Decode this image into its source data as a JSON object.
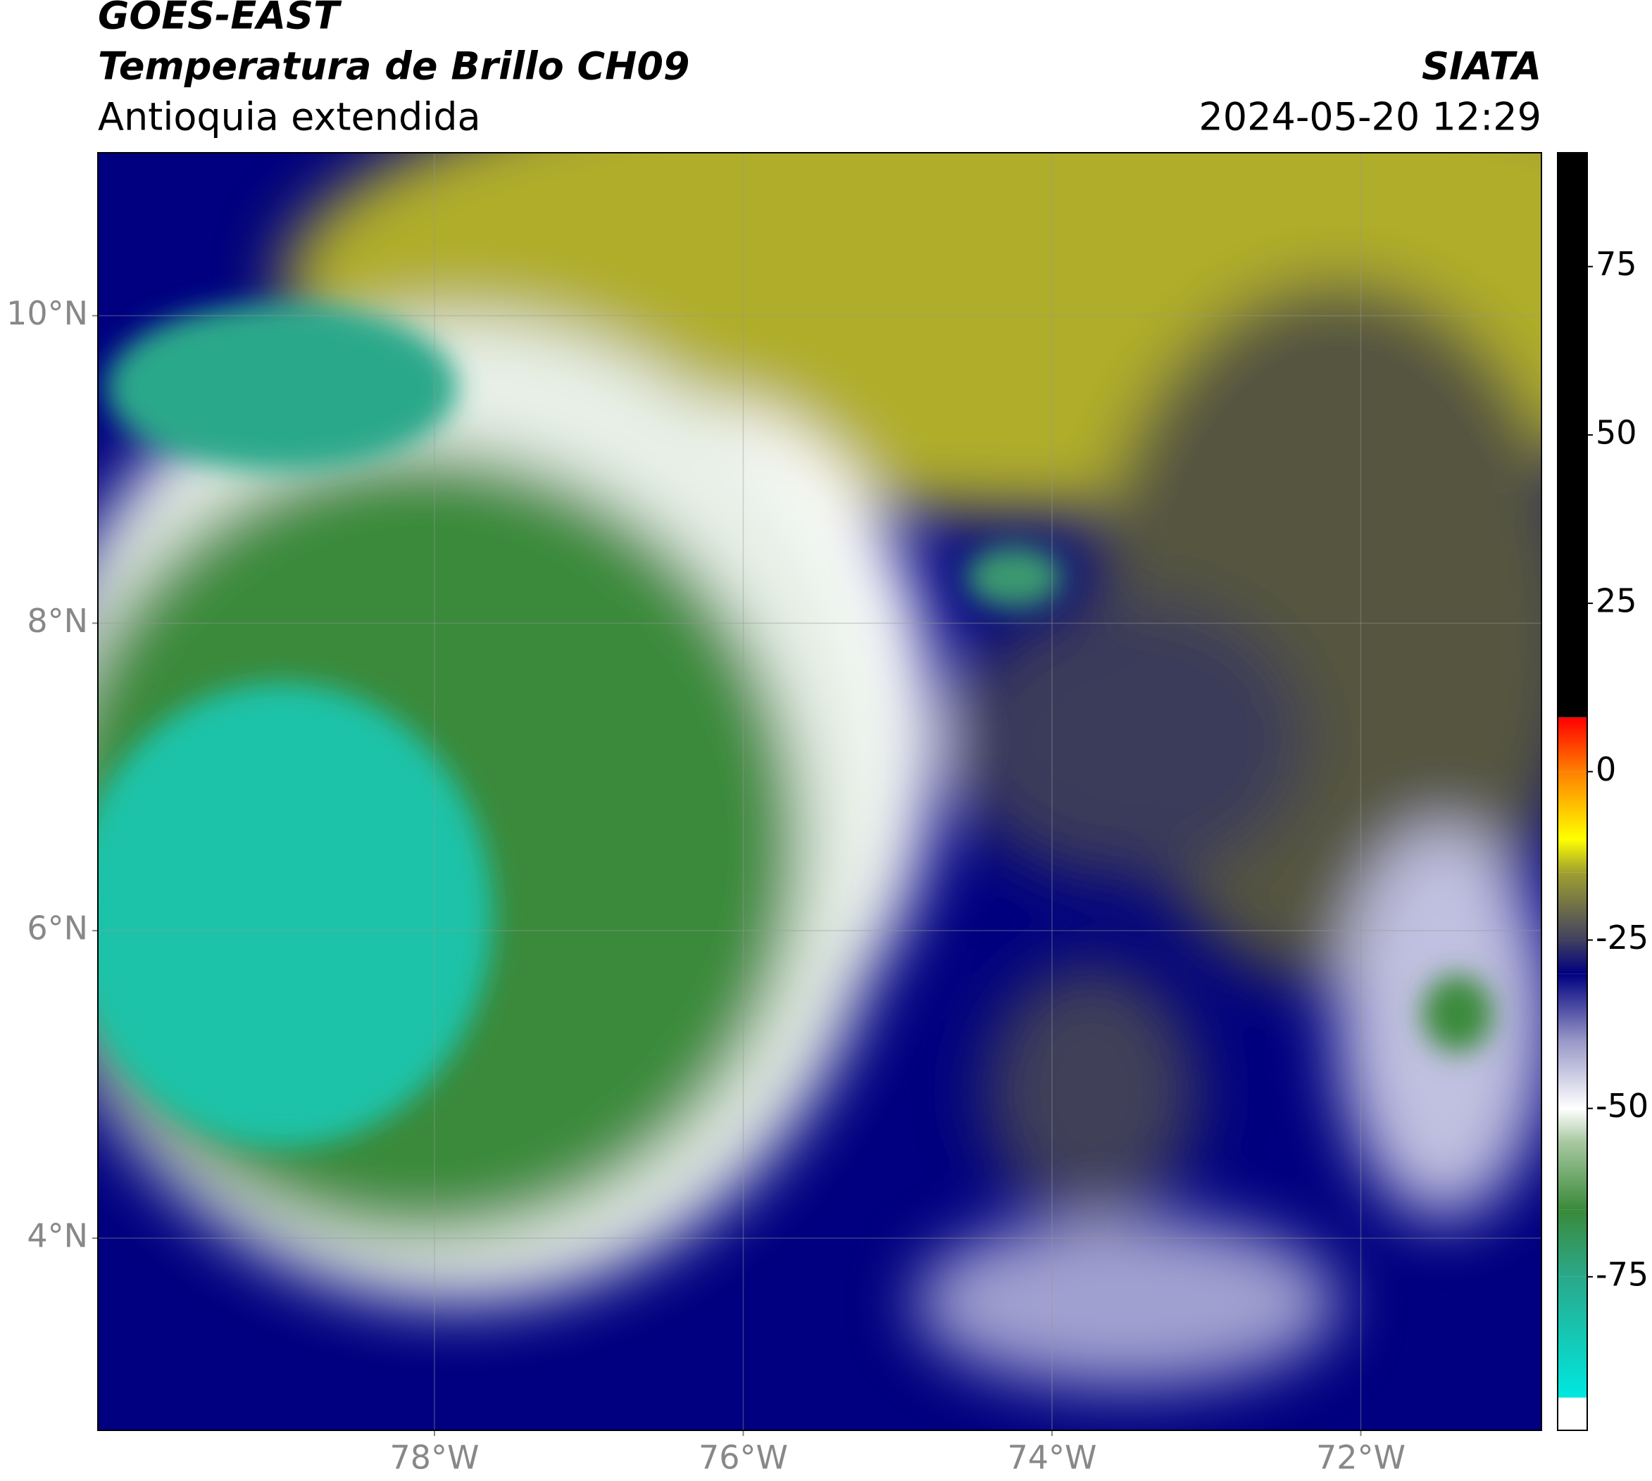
{
  "header": {
    "line1": "GOES-EAST",
    "line2": "Temperatura de Brillo CH09",
    "line3": "Antioquia extendida",
    "agency": "SIATA",
    "timestamp": "2024-05-20 12:29"
  },
  "map": {
    "xlim": [
      -80.18,
      -70.83
    ],
    "ylim": [
      2.75,
      11.06
    ],
    "xticks": [
      {
        "value": -78,
        "label": "78°W"
      },
      {
        "value": -76,
        "label": "76°W"
      },
      {
        "value": -74,
        "label": "74°W"
      },
      {
        "value": -72,
        "label": "72°W"
      }
    ],
    "yticks": [
      {
        "value": 4,
        "label": "4°N"
      },
      {
        "value": 6,
        "label": "6°N"
      },
      {
        "value": 8,
        "label": "8°N"
      },
      {
        "value": 10,
        "label": "10°N"
      }
    ],
    "grid": true
  },
  "colorbar": {
    "lim": [
      -97.8,
      91.9
    ],
    "ticks": [
      -75,
      -50,
      -25,
      0,
      25,
      50,
      75
    ],
    "stops": [
      {
        "value": -97.8,
        "color": "#ffffff"
      },
      {
        "value": -93,
        "color": "#ffffff"
      },
      {
        "value": -92.9,
        "color": "#00e8e0"
      },
      {
        "value": -75,
        "color": "#2aa88a"
      },
      {
        "value": -65,
        "color": "#3a8a3a"
      },
      {
        "value": -55,
        "color": "#a8c8a0"
      },
      {
        "value": -50,
        "color": "#ffffff"
      },
      {
        "value": -40,
        "color": "#9898c8"
      },
      {
        "value": -30,
        "color": "#000080"
      },
      {
        "value": -25,
        "color": "#404060"
      },
      {
        "value": -15,
        "color": "#a0a030"
      },
      {
        "value": -10,
        "color": "#ffff00"
      },
      {
        "value": 0,
        "color": "#ff8000"
      },
      {
        "value": 8,
        "color": "#ff0000"
      },
      {
        "value": 8.1,
        "color": "#000000"
      },
      {
        "value": 91.9,
        "color": "#000000"
      }
    ]
  }
}
